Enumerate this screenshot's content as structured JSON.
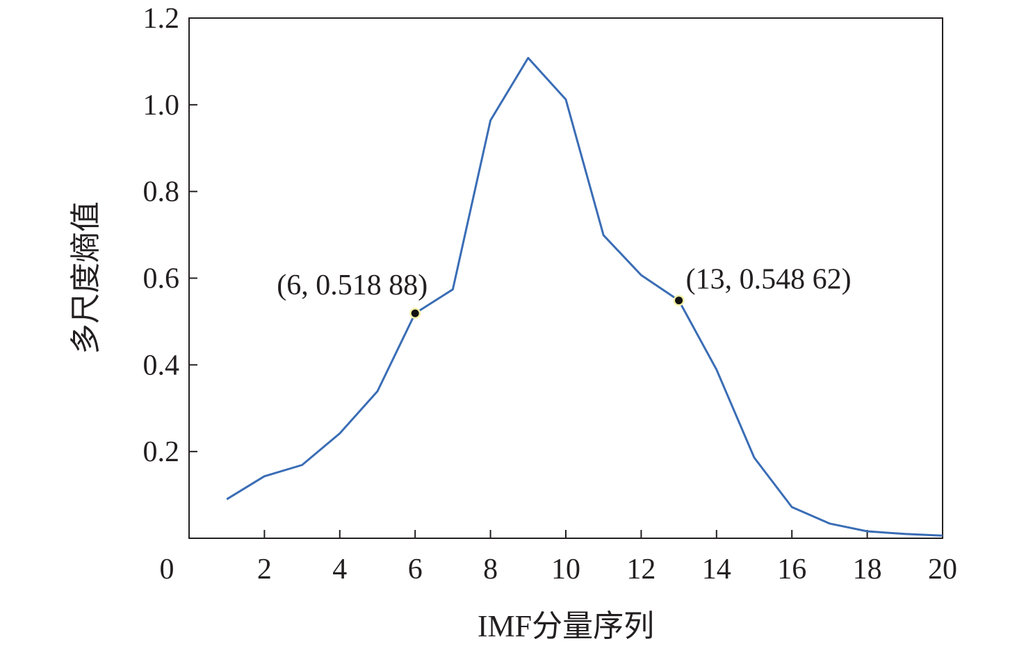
{
  "chart_data": {
    "type": "line",
    "xlabel": "IMF分量序列",
    "ylabel": "多尺度熵值",
    "xlim": [
      0,
      20
    ],
    "ylim": [
      0,
      1.2
    ],
    "x_ticks": [
      2,
      4,
      6,
      8,
      10,
      12,
      14,
      16,
      18,
      20
    ],
    "y_ticks": [
      0.2,
      0.4,
      0.6,
      0.8,
      1.0,
      1.2
    ],
    "origin_label": "0",
    "grid": false,
    "colors": {
      "line": "#3a6db5",
      "axis": "#231f20",
      "marker_fill": "#111111",
      "marker_halo": "#f3f0a6"
    },
    "series": [
      {
        "x": [
          1,
          2,
          3,
          4,
          5,
          6,
          7,
          8,
          9,
          10,
          11,
          12,
          13,
          14,
          15,
          16,
          17,
          18,
          19,
          20
        ],
        "values": [
          0.09,
          0.143,
          0.169,
          0.242,
          0.339,
          0.51888,
          0.574,
          0.964,
          1.108,
          1.012,
          0.699,
          0.607,
          0.54862,
          0.389,
          0.186,
          0.072,
          0.034,
          0.016,
          0.01,
          0.006
        ]
      }
    ],
    "annotations": [
      {
        "x": 6,
        "y": 0.51888,
        "text": "(6, 0.518 88)"
      },
      {
        "x": 13,
        "y": 0.54862,
        "text": "(13, 0.548 62)"
      }
    ]
  }
}
